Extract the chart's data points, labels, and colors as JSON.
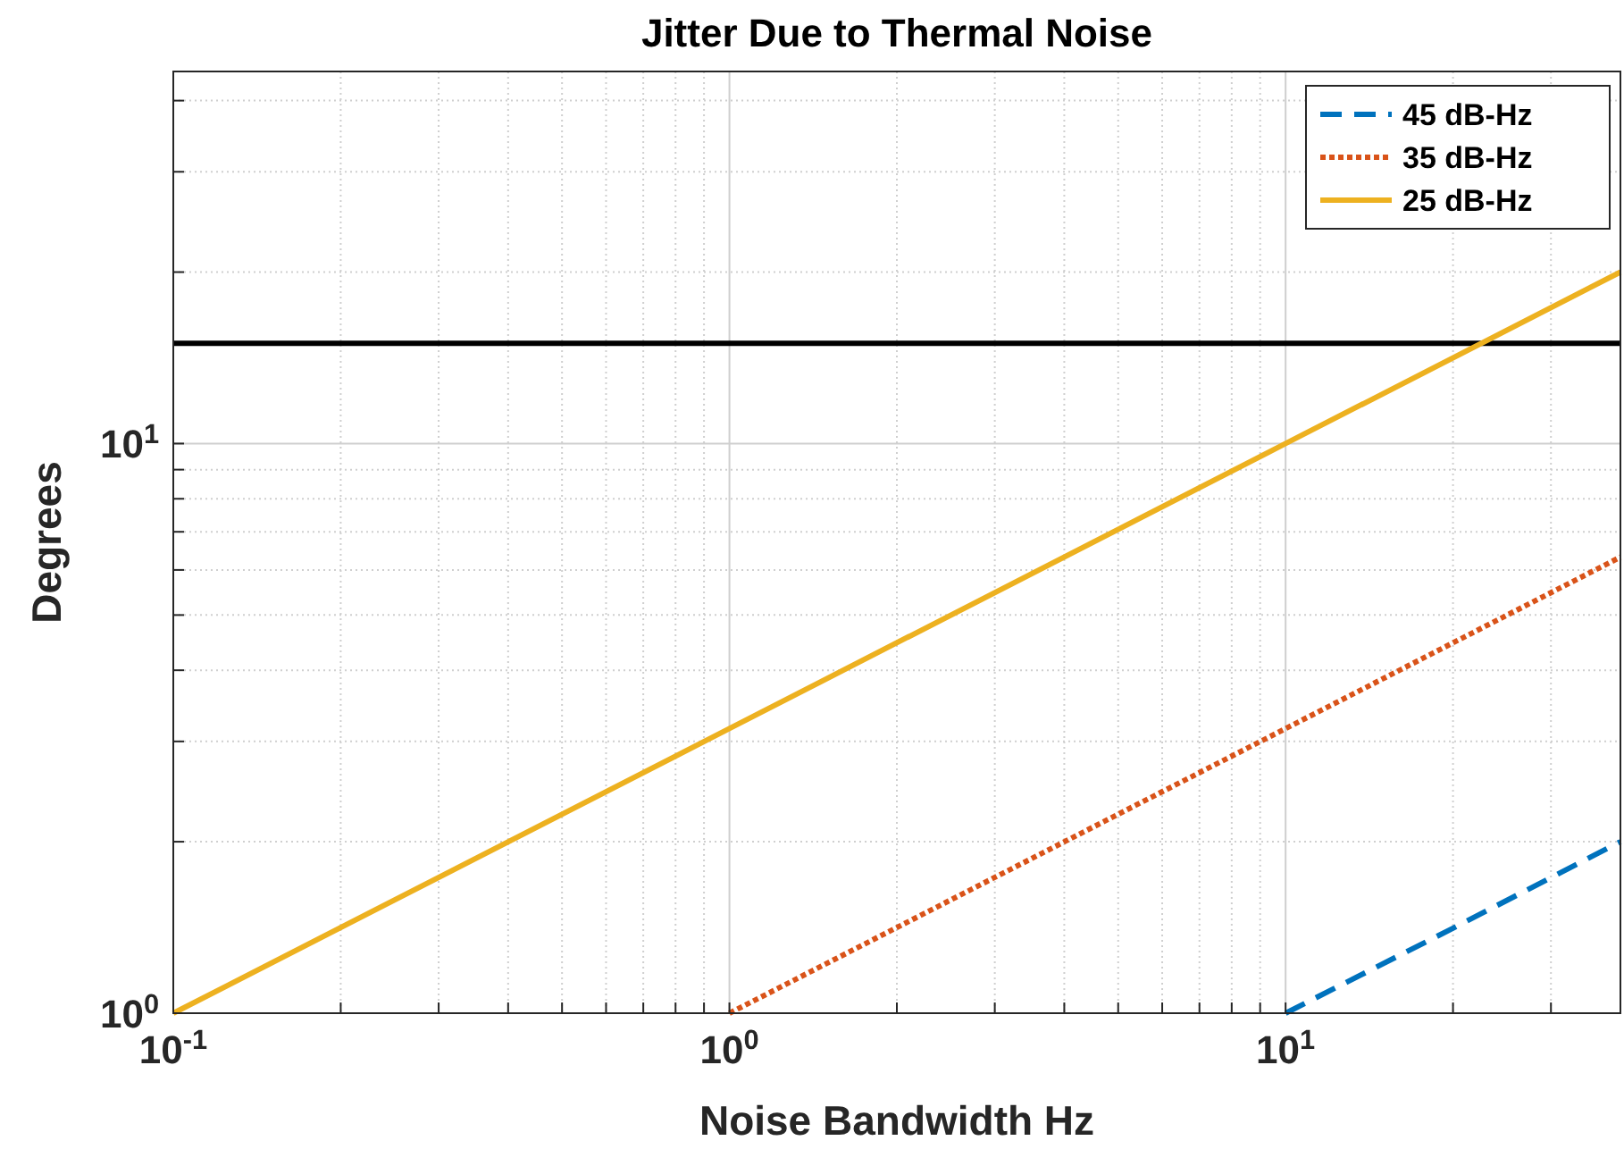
{
  "chart_data": {
    "type": "line",
    "title": "Jitter Due to Thermal Noise",
    "xlabel": "Noise Bandwidth Hz",
    "ylabel": "Degrees",
    "log": "xy",
    "grid": true,
    "legend": "top right",
    "xlim": [
      0.1,
      40
    ],
    "ylim": [
      1,
      45
    ],
    "xticks": [
      {
        "value": 0.1,
        "label": "10$^{-1}$"
      },
      {
        "value": 0.2,
        "label": null
      },
      {
        "value": 0.3,
        "label": null
      },
      {
        "value": 0.4,
        "label": null
      },
      {
        "value": 0.5,
        "label": null
      },
      {
        "value": 0.6,
        "label": null
      },
      {
        "value": 0.7,
        "label": null
      },
      {
        "value": 0.8,
        "label": null
      },
      {
        "value": 0.9,
        "label": null
      },
      {
        "value": 1,
        "label": "10$^{0}$"
      },
      {
        "value": 2,
        "label": null
      },
      {
        "value": 3,
        "label": null
      },
      {
        "value": 4,
        "label": null
      },
      {
        "value": 5,
        "label": null
      },
      {
        "value": 6,
        "label": null
      },
      {
        "value": 7,
        "label": null
      },
      {
        "value": 8,
        "label": null
      },
      {
        "value": 9,
        "label": null
      },
      {
        "value": 10,
        "label": "10$^{1}$"
      },
      {
        "value": 20,
        "label": null
      },
      {
        "value": 30,
        "label": null
      },
      {
        "value": 40,
        "label": null
      }
    ],
    "yticks": [
      {
        "value": 1,
        "label": "10$^{0}$"
      },
      {
        "value": 2,
        "label": null
      },
      {
        "value": 3,
        "label": null
      },
      {
        "value": 4,
        "label": null
      },
      {
        "value": 5,
        "label": null
      },
      {
        "value": 6,
        "label": null
      },
      {
        "value": 7,
        "label": null
      },
      {
        "value": 8,
        "label": null
      },
      {
        "value": 9,
        "label": null
      },
      {
        "value": 10,
        "label": "10$^{1}$"
      },
      {
        "value": 20,
        "label": null
      },
      {
        "value": 30,
        "label": null
      },
      {
        "value": 40,
        "label": null
      }
    ],
    "series": [
      {
        "name": "45 dB-Hz",
        "color": "#0072bd",
        "line_style": "dashed",
        "x": [
          10,
          20,
          40
        ],
        "values": [
          1,
          1.41,
          2
        ]
      },
      {
        "name": "35 dB-Hz",
        "color": "#d95319",
        "line_style": "dotted",
        "x": [
          1,
          10,
          40
        ],
        "values": [
          1,
          3.16,
          6.32
        ]
      },
      {
        "name": "25 dB-Hz",
        "color": "#edb120",
        "line_style": "solid",
        "x": [
          0.1,
          1,
          10,
          40
        ],
        "values": [
          1,
          3.16,
          10,
          20
        ]
      }
    ],
    "ref_lines": [
      {
        "axis": "y",
        "value": 15,
        "color": "#000000",
        "line_style": "solid"
      }
    ]
  }
}
